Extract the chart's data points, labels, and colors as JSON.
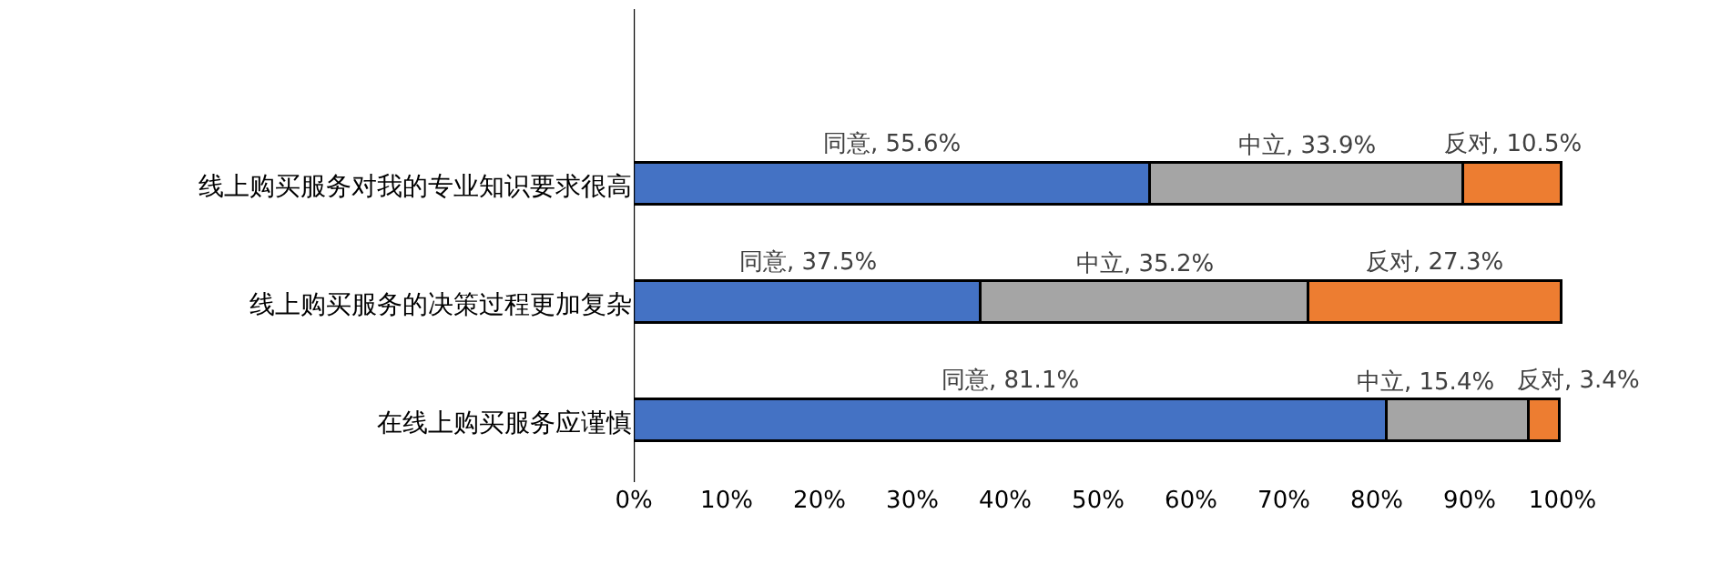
{
  "chart_data": {
    "type": "bar",
    "orientation": "horizontal",
    "stacked": true,
    "categories": [
      "线上购买服务对我的专业知识要求很高",
      "线上购买服务的决策过程更加复杂",
      "在线上购买服务应谨慎"
    ],
    "series": [
      {
        "color": "#4472c4",
        "values": [
          55.6,
          37.5,
          81.1
        ],
        "value_labels": [
          "同意, 55.6%",
          "同意, 37.5%",
          "同意, 81.1%"
        ]
      },
      {
        "color": "#a5a5a5",
        "values": [
          33.9,
          35.2,
          15.4
        ],
        "value_labels": [
          "中立, 33.9%",
          "中立, 35.2%",
          "中立, 15.4%"
        ]
      },
      {
        "color": "#ed7d31",
        "values": [
          10.5,
          27.3,
          3.4
        ],
        "value_labels": [
          "反对, 10.5%",
          "反对, 27.3%",
          "反对, 3.4%"
        ]
      }
    ],
    "xlim": [
      0,
      100
    ],
    "xticks": [
      {
        "value": 0,
        "label": "0%"
      },
      {
        "value": 10,
        "label": "10%"
      },
      {
        "value": 20,
        "label": "20%"
      },
      {
        "value": 30,
        "label": "30%"
      },
      {
        "value": 40,
        "label": "40%"
      },
      {
        "value": 50,
        "label": "50%"
      },
      {
        "value": 60,
        "label": "60%"
      },
      {
        "value": 70,
        "label": "70%"
      },
      {
        "value": 80,
        "label": "80%"
      },
      {
        "value": 90,
        "label": "90%"
      },
      {
        "value": 100,
        "label": "100%"
      }
    ],
    "grid": false,
    "legend": false
  }
}
